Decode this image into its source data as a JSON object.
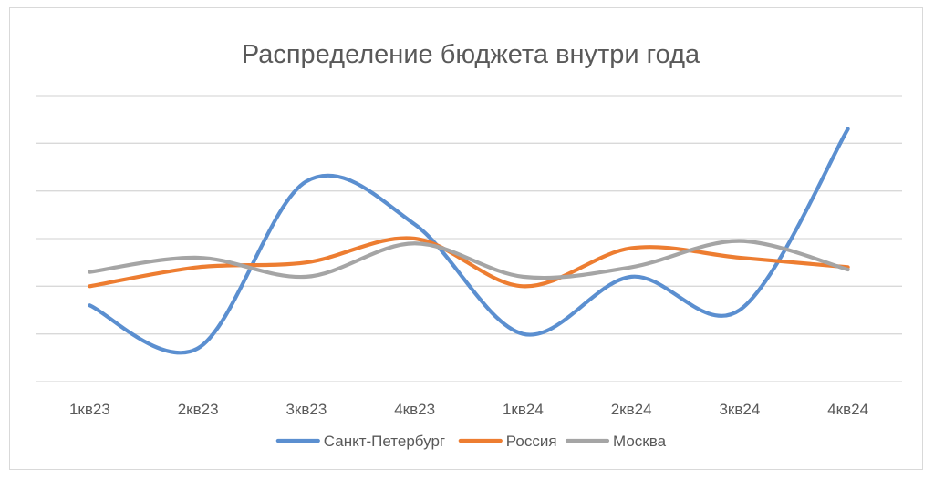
{
  "chart_data": {
    "type": "line",
    "title": "Распределение бюджета внутри года",
    "categories": [
      "1кв23",
      "2кв23",
      "3кв23",
      "4кв23",
      "1кв24",
      "2кв24",
      "3кв24",
      "4кв24"
    ],
    "ylim": [
      0,
      6
    ],
    "y_gridlines": [
      0,
      1,
      2,
      3,
      4,
      5,
      6
    ],
    "y_tick_labels_shown": false,
    "xlabel": "",
    "ylabel": "",
    "legend_position": "bottom",
    "smooth": true,
    "series": [
      {
        "name": "Санкт-Петербург",
        "color": "#5b8fd0",
        "values": [
          1.6,
          0.7,
          4.2,
          3.3,
          1.0,
          2.2,
          1.5,
          5.3
        ]
      },
      {
        "name": "Россия",
        "color": "#ed7d31",
        "values": [
          2.0,
          2.4,
          2.5,
          3.0,
          2.0,
          2.8,
          2.6,
          2.4
        ]
      },
      {
        "name": "Москва",
        "color": "#a5a5a5",
        "values": [
          2.3,
          2.6,
          2.2,
          2.9,
          2.2,
          2.4,
          2.95,
          2.35
        ]
      }
    ]
  }
}
